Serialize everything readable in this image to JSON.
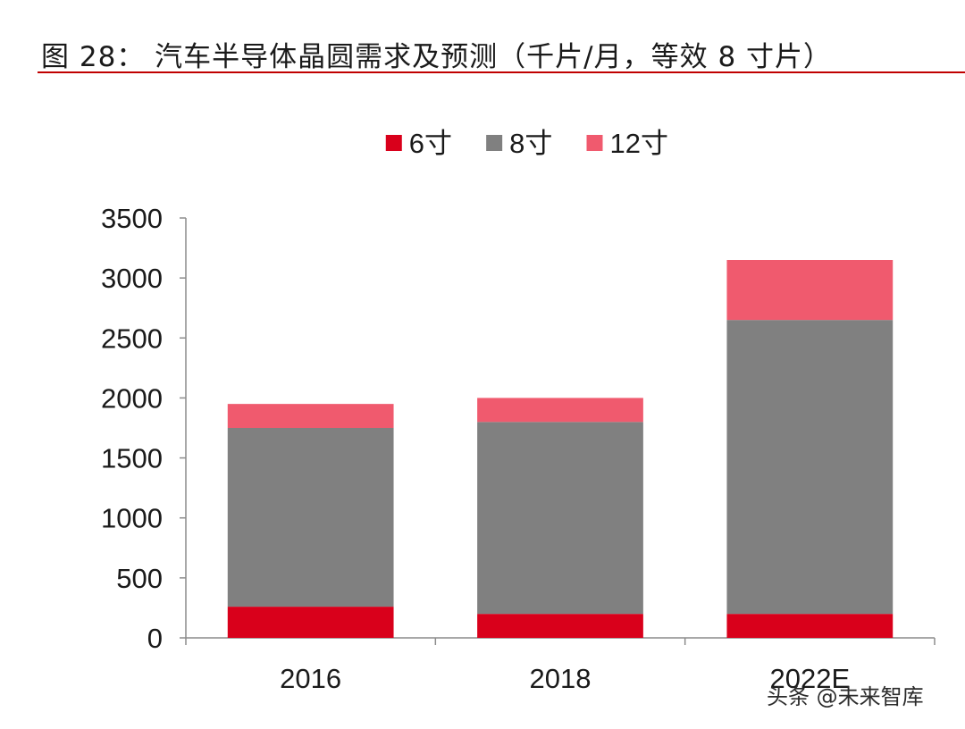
{
  "title": "图 28：  汽车半导体晶圆需求及预测（千片/月，等效 8 寸片）",
  "watermark": "头条 @未来智库",
  "chart_data": {
    "type": "bar",
    "stacked": true,
    "categories": [
      "2016",
      "2018",
      "2022E"
    ],
    "series": [
      {
        "name": "6寸",
        "color": "#d9001b",
        "values": [
          260,
          200,
          200
        ]
      },
      {
        "name": "8寸",
        "color": "#808080",
        "values": [
          1490,
          1600,
          2450
        ]
      },
      {
        "name": "12寸",
        "color": "#f05a6e",
        "values": [
          200,
          200,
          500
        ]
      }
    ],
    "ylim": [
      0,
      3500
    ],
    "yticks": [
      0,
      500,
      1000,
      1500,
      2000,
      2500,
      3000,
      3500
    ],
    "grid": false,
    "legend": "top-center",
    "xlabel": "",
    "ylabel": ""
  }
}
